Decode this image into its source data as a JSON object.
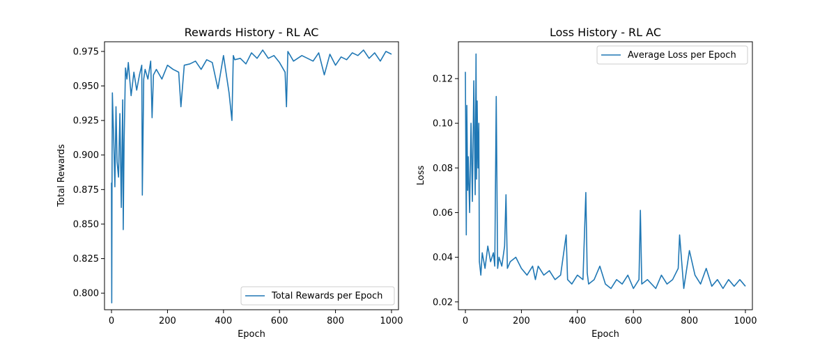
{
  "chart_data": [
    {
      "type": "line",
      "title": "Rewards History - RL AC",
      "xlabel": "Epoch",
      "ylabel": "Total Rewards",
      "xlim": [
        -25,
        1025
      ],
      "ylim": [
        0.788,
        0.982
      ],
      "xticks": [
        0,
        200,
        400,
        600,
        800,
        1000
      ],
      "xtick_labels": [
        "0",
        "200",
        "400",
        "600",
        "800",
        "1000"
      ],
      "yticks": [
        0.8,
        0.825,
        0.85,
        0.875,
        0.9,
        0.925,
        0.95,
        0.975
      ],
      "ytick_labels": [
        "0.800",
        "0.825",
        "0.850",
        "0.875",
        "0.900",
        "0.925",
        "0.950",
        "0.975"
      ],
      "legend_position": "lower-right",
      "color": "#1f77b4",
      "series": [
        {
          "name": "Total Rewards per Epoch",
          "x": [
            0,
            1,
            2,
            3,
            5,
            8,
            12,
            16,
            20,
            25,
            30,
            35,
            40,
            42,
            45,
            50,
            55,
            60,
            70,
            80,
            90,
            100,
            108,
            110,
            115,
            120,
            130,
            140,
            145,
            150,
            160,
            180,
            200,
            220,
            240,
            248,
            260,
            280,
            300,
            320,
            340,
            360,
            380,
            400,
            420,
            430,
            435,
            440,
            460,
            480,
            500,
            520,
            540,
            560,
            580,
            600,
            620,
            625,
            630,
            650,
            680,
            700,
            720,
            740,
            760,
            780,
            800,
            820,
            840,
            860,
            880,
            900,
            920,
            940,
            960,
            980,
            1000
          ],
          "y": [
            0.88,
            0.793,
            0.9,
            0.945,
            0.93,
            0.91,
            0.877,
            0.935,
            0.895,
            0.884,
            0.93,
            0.862,
            0.94,
            0.846,
            0.908,
            0.963,
            0.955,
            0.967,
            0.943,
            0.96,
            0.947,
            0.958,
            0.965,
            0.871,
            0.955,
            0.962,
            0.955,
            0.968,
            0.927,
            0.958,
            0.962,
            0.955,
            0.965,
            0.962,
            0.96,
            0.935,
            0.965,
            0.966,
            0.968,
            0.962,
            0.969,
            0.967,
            0.948,
            0.972,
            0.945,
            0.925,
            0.972,
            0.969,
            0.97,
            0.966,
            0.974,
            0.97,
            0.976,
            0.97,
            0.972,
            0.967,
            0.96,
            0.935,
            0.975,
            0.968,
            0.972,
            0.97,
            0.968,
            0.974,
            0.958,
            0.973,
            0.965,
            0.971,
            0.969,
            0.974,
            0.972,
            0.976,
            0.97,
            0.974,
            0.968,
            0.975,
            0.973
          ]
        }
      ]
    },
    {
      "type": "line",
      "title": "Loss History - RL AC",
      "xlabel": "Epoch",
      "ylabel": "Loss",
      "xlim": [
        -25,
        1025
      ],
      "ylim": [
        0.0165,
        0.1365
      ],
      "xticks": [
        0,
        200,
        400,
        600,
        800,
        1000
      ],
      "xtick_labels": [
        "0",
        "200",
        "400",
        "600",
        "800",
        "1000"
      ],
      "yticks": [
        0.02,
        0.04,
        0.06,
        0.08,
        0.1,
        0.12
      ],
      "ytick_labels": [
        "0.02",
        "0.04",
        "0.06",
        "0.08",
        "0.10",
        "0.12"
      ],
      "legend_position": "upper-right",
      "color": "#1f77b4",
      "series": [
        {
          "name": "Average Loss per Epoch",
          "x": [
            0,
            3,
            5,
            8,
            10,
            15,
            20,
            25,
            30,
            35,
            38,
            40,
            42,
            45,
            48,
            50,
            55,
            60,
            70,
            80,
            90,
            100,
            105,
            110,
            115,
            120,
            130,
            140,
            145,
            150,
            160,
            180,
            200,
            220,
            240,
            250,
            260,
            280,
            300,
            320,
            340,
            360,
            365,
            380,
            400,
            420,
            430,
            435,
            440,
            460,
            480,
            500,
            520,
            540,
            560,
            580,
            600,
            620,
            625,
            630,
            650,
            680,
            700,
            720,
            740,
            760,
            765,
            780,
            800,
            820,
            840,
            860,
            880,
            900,
            920,
            940,
            960,
            980,
            1000
          ],
          "y": [
            0.123,
            0.05,
            0.108,
            0.07,
            0.085,
            0.06,
            0.1,
            0.065,
            0.119,
            0.068,
            0.131,
            0.075,
            0.11,
            0.08,
            0.1,
            0.038,
            0.032,
            0.042,
            0.035,
            0.045,
            0.038,
            0.042,
            0.036,
            0.112,
            0.035,
            0.04,
            0.036,
            0.045,
            0.068,
            0.035,
            0.038,
            0.04,
            0.035,
            0.032,
            0.036,
            0.03,
            0.036,
            0.032,
            0.034,
            0.03,
            0.032,
            0.05,
            0.03,
            0.028,
            0.032,
            0.03,
            0.069,
            0.033,
            0.028,
            0.03,
            0.036,
            0.028,
            0.026,
            0.03,
            0.028,
            0.032,
            0.026,
            0.03,
            0.061,
            0.028,
            0.03,
            0.026,
            0.032,
            0.028,
            0.03,
            0.035,
            0.05,
            0.026,
            0.043,
            0.032,
            0.028,
            0.035,
            0.027,
            0.03,
            0.026,
            0.03,
            0.027,
            0.03,
            0.027
          ]
        }
      ]
    }
  ]
}
